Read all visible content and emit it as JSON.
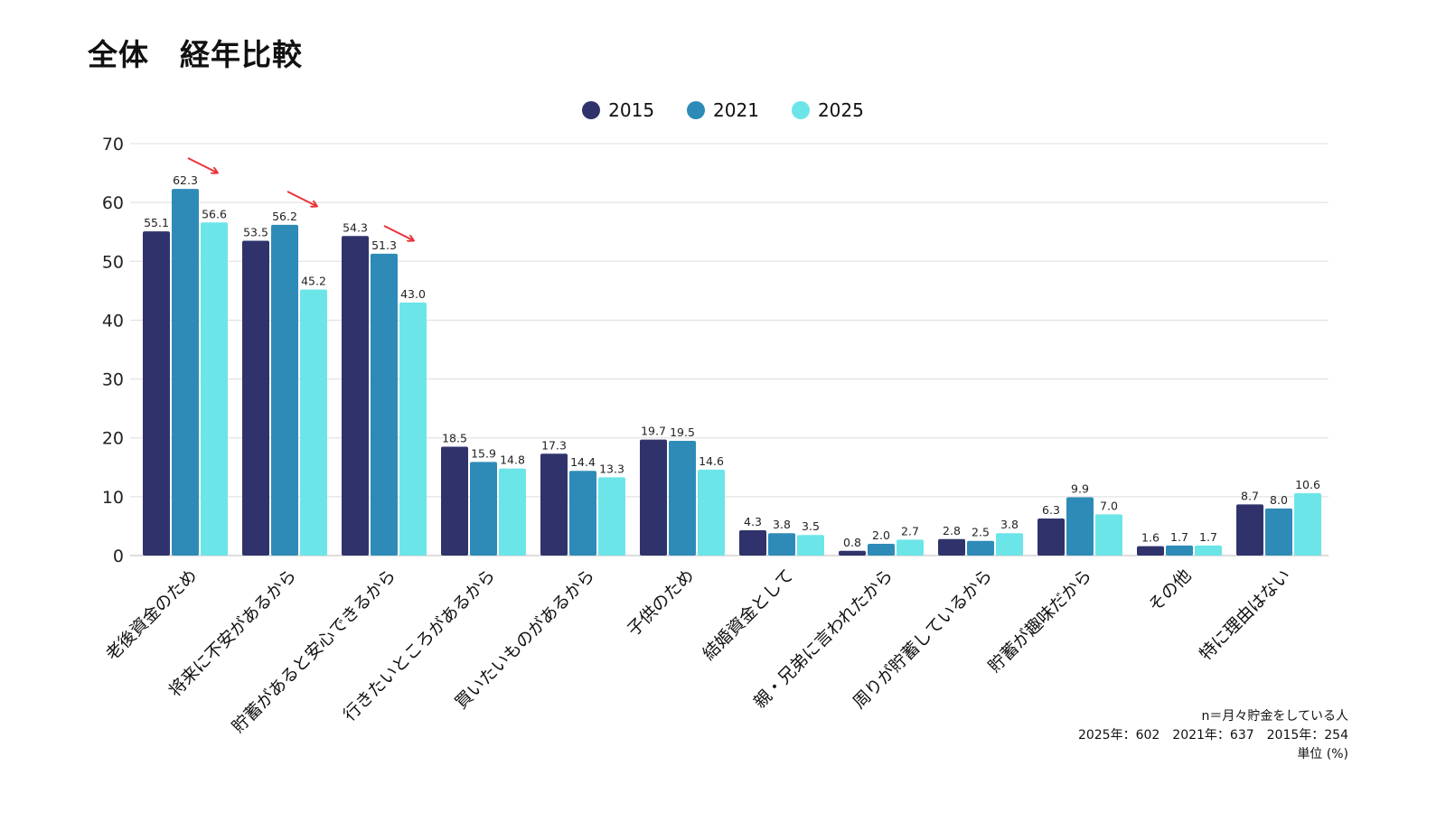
{
  "title": "全体　経年比較",
  "legend": [
    {
      "label": "2015",
      "color": "#30336b"
    },
    {
      "label": "2021",
      "color": "#2e8bb8"
    },
    {
      "label": "2025",
      "color": "#6ce5e8"
    }
  ],
  "notes": {
    "line1": "n＝月々貯金をしている人",
    "line2": "2025年：602　2021年：637　2015年：254",
    "line3": "単位 (%)"
  },
  "chart_data": {
    "type": "bar",
    "title": "全体　経年比較",
    "xlabel": "",
    "ylabel": "",
    "unit": "%",
    "ylim": [
      0,
      70
    ],
    "yticks": [
      0,
      10,
      20,
      30,
      40,
      50,
      60,
      70
    ],
    "grid": true,
    "legend_position": "top-center",
    "categories": [
      "老後資金のため",
      "将来に不安があるから",
      "貯蓄があると安心できるから",
      "行きたいところがあるから",
      "買いたいものがあるから",
      "子供のため",
      "結婚資金として",
      "親・兄弟に言われたから",
      "周りが貯蓄しているから",
      "貯蓄が趣味だから",
      "その他",
      "特に理由はない"
    ],
    "series": [
      {
        "name": "2015",
        "color": "#30336b",
        "values": [
          55.1,
          53.5,
          54.3,
          18.5,
          17.3,
          19.7,
          4.3,
          0.8,
          2.8,
          6.3,
          1.6,
          8.7
        ]
      },
      {
        "name": "2021",
        "color": "#2e8bb8",
        "values": [
          62.3,
          56.2,
          51.3,
          15.9,
          14.4,
          19.5,
          3.8,
          2.0,
          2.5,
          9.9,
          1.7,
          8.0
        ]
      },
      {
        "name": "2025",
        "color": "#6ce5e8",
        "values": [
          56.6,
          45.2,
          43.0,
          14.8,
          13.3,
          14.6,
          3.5,
          2.7,
          3.8,
          7.0,
          1.7,
          10.6
        ]
      }
    ],
    "annotations": [
      {
        "type": "arrow",
        "direction": "down-right",
        "color": "#e8333a",
        "category": "老後資金のため"
      },
      {
        "type": "arrow",
        "direction": "down-right",
        "color": "#e8333a",
        "category": "将来に不安があるから"
      },
      {
        "type": "arrow",
        "direction": "down-right",
        "color": "#e8333a",
        "category": "貯蓄があると安心できるから"
      }
    ]
  }
}
